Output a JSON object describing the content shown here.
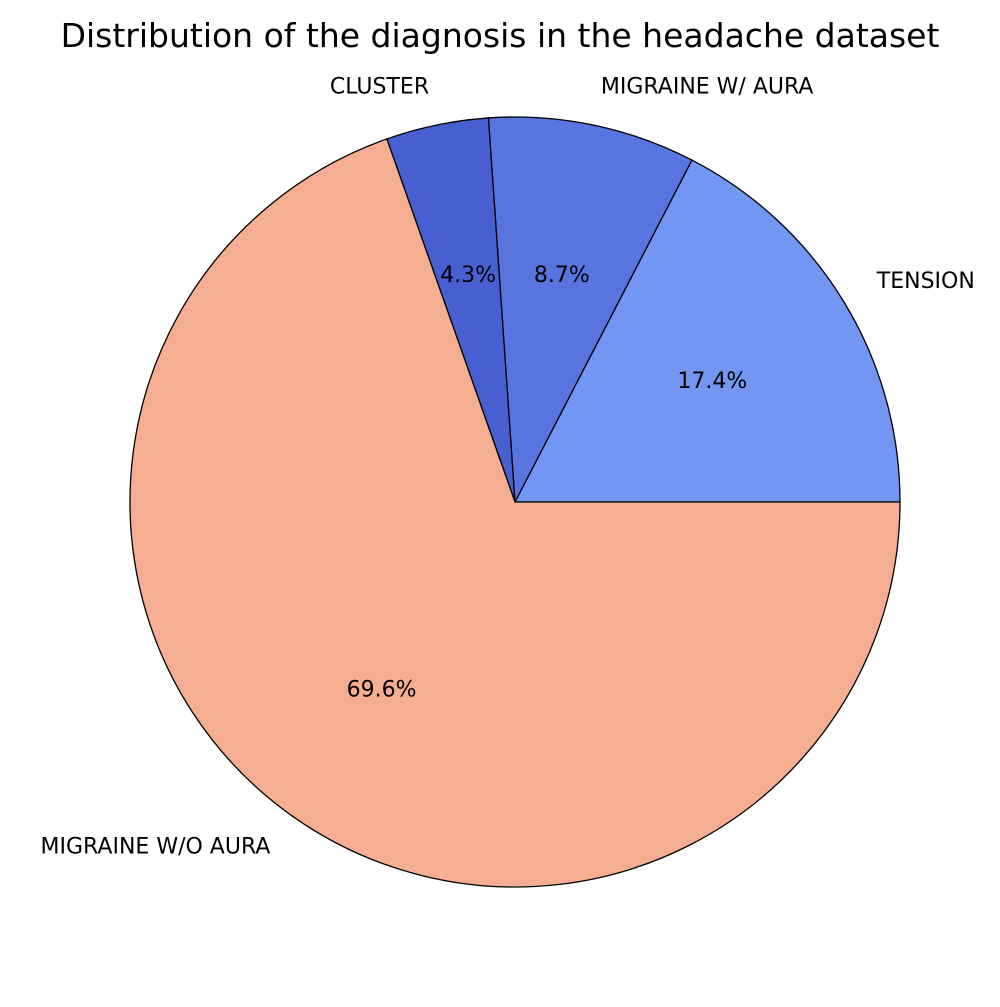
{
  "chart_data": {
    "type": "pie",
    "title": "Distribution of the diagnosis in the headache dataset",
    "slices": [
      {
        "label": "TENSION",
        "value": 17.4,
        "pct_label": "17.4%",
        "color": "#7396f2"
      },
      {
        "label": "MIGRAINE W/ AURA",
        "value": 8.7,
        "pct_label": "8.7%",
        "color": "#5874df"
      },
      {
        "label": "CLUSTER",
        "value": 4.3,
        "pct_label": "4.3%",
        "color": "#485fd2"
      },
      {
        "label": "MIGRAINE W/O AURA",
        "value": 69.6,
        "pct_label": "69.6%",
        "color": "#f6ae92"
      }
    ],
    "start_angle": 0,
    "direction": "counterclockwise",
    "legend": "none"
  }
}
